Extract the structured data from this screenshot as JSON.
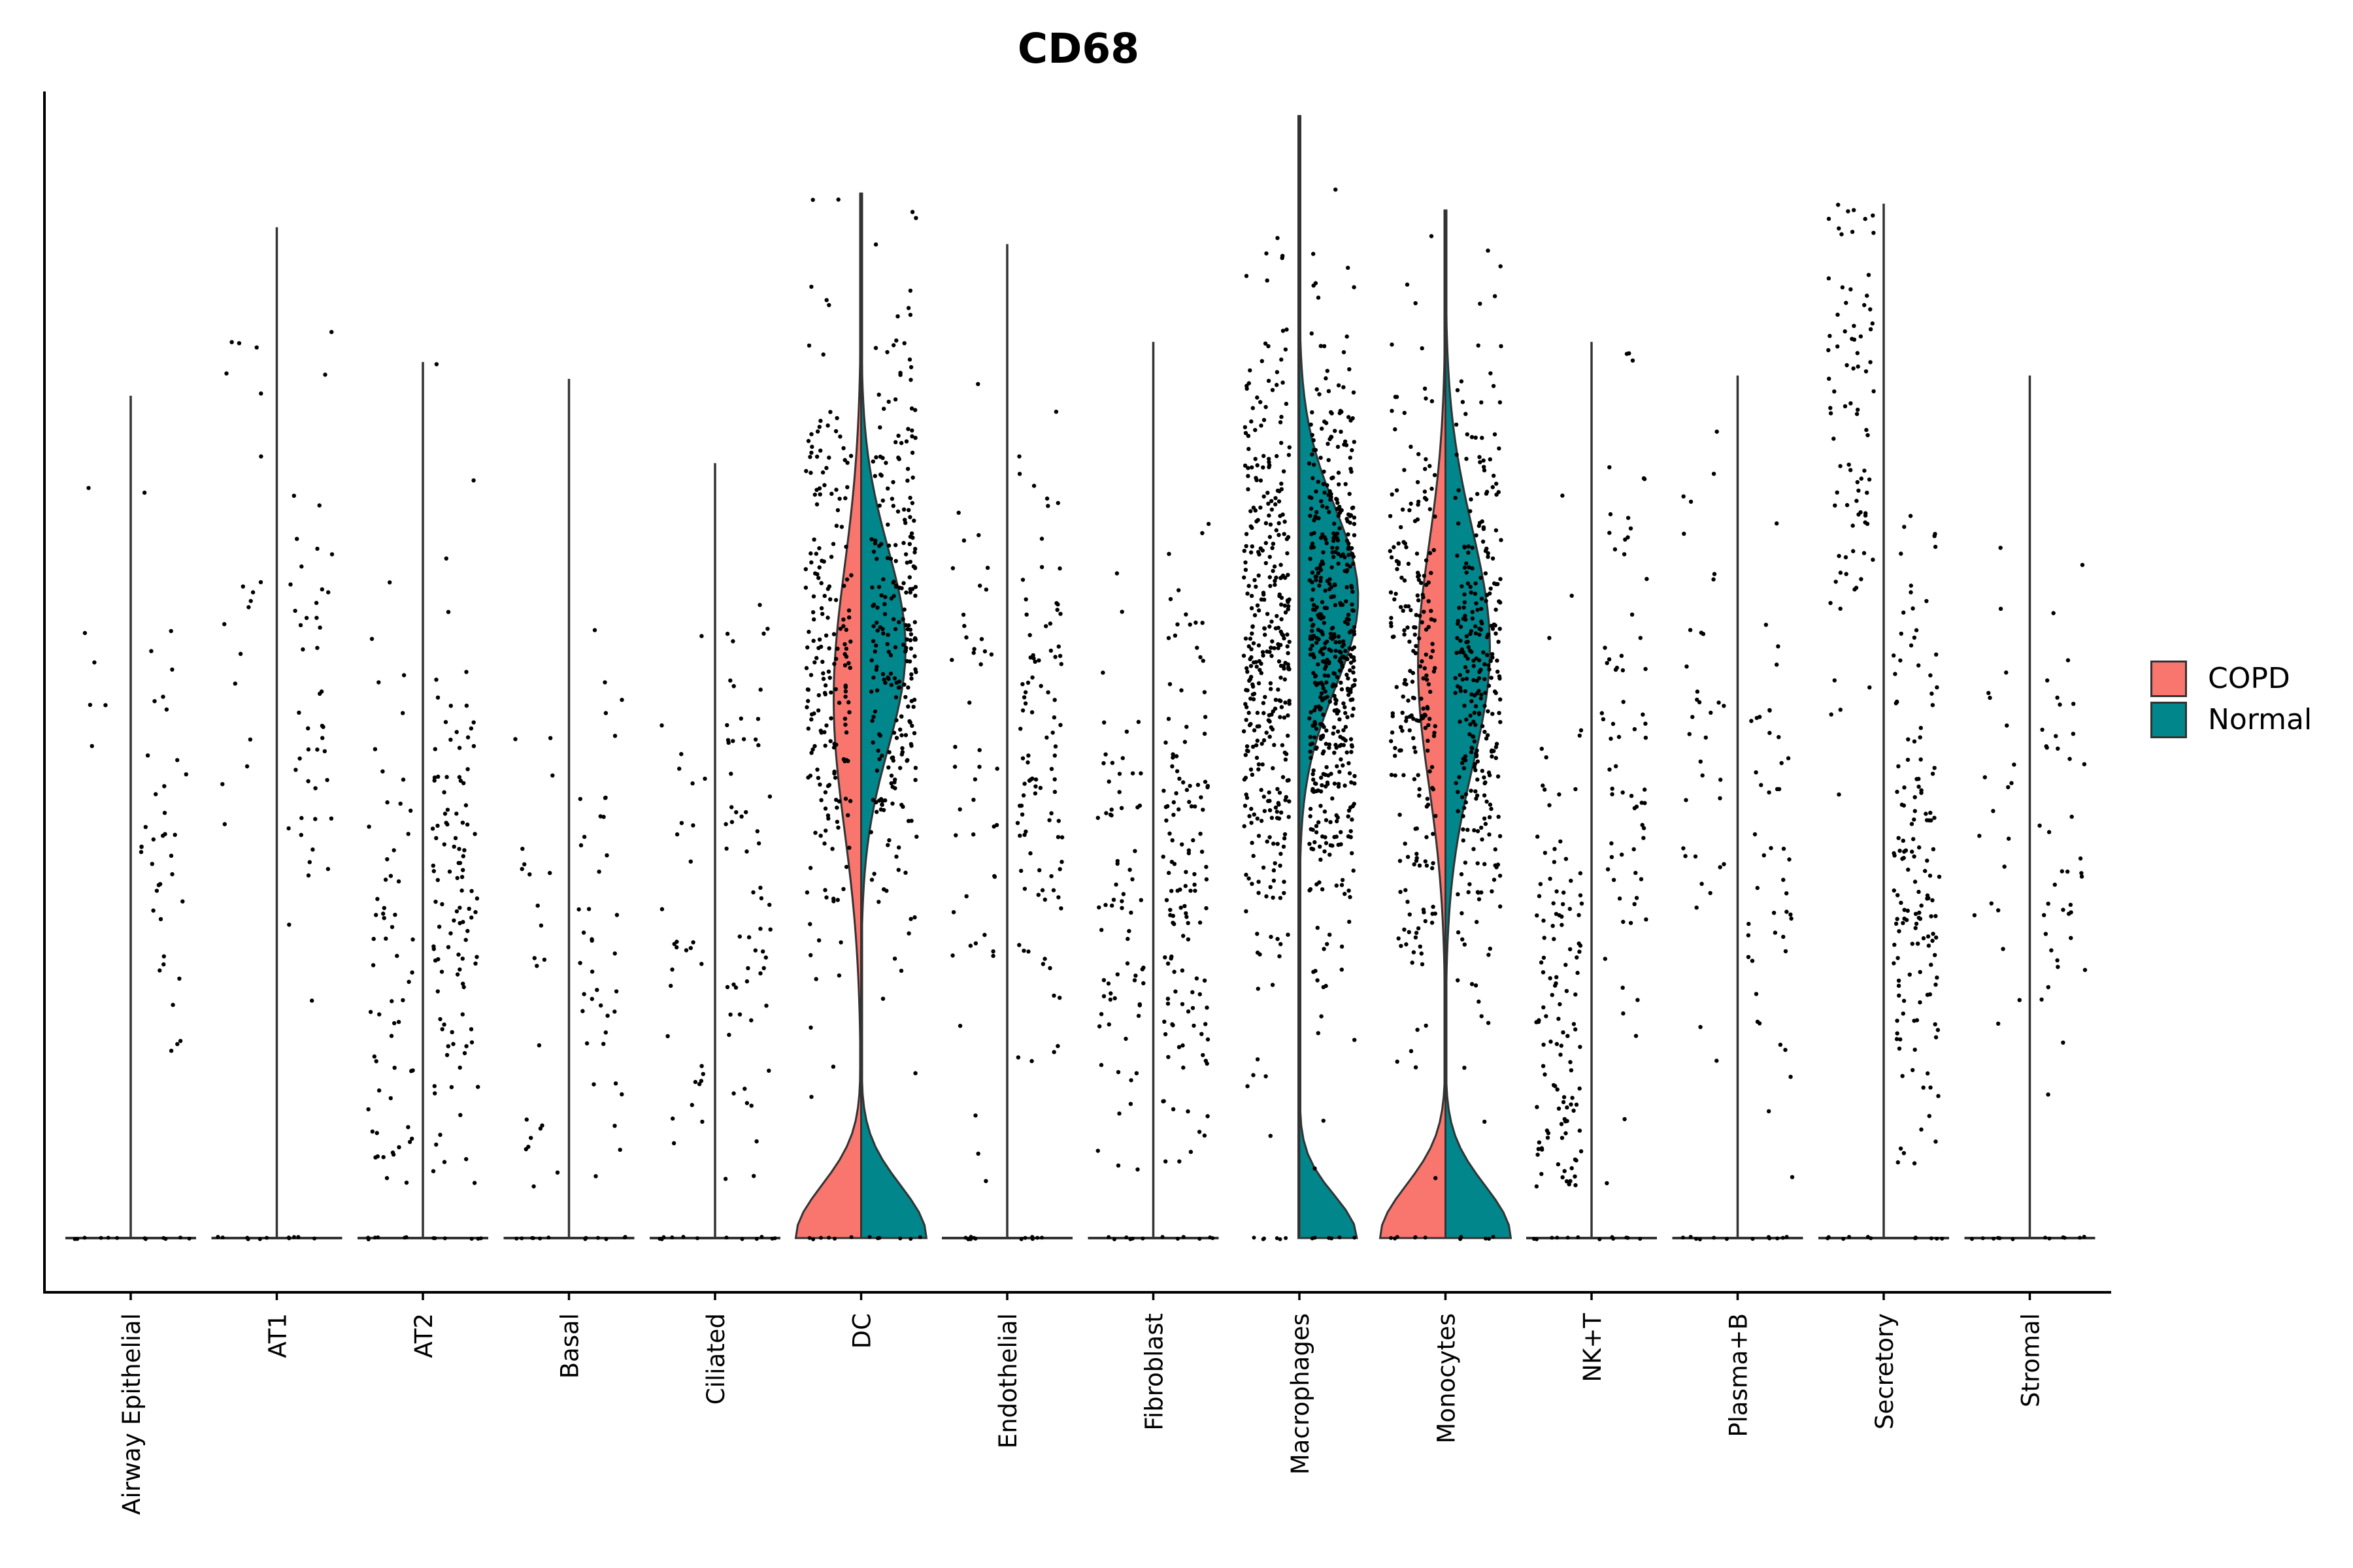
{
  "chart_data": {
    "type": "violin",
    "title": "CD68",
    "xlabel": "",
    "ylabel": "",
    "ylim": [
      0,
      3.5
    ],
    "categories": [
      "Airway Epithelial",
      "AT1",
      "AT2",
      "Basal",
      "Ciliated",
      "DC",
      "Endothelial",
      "Fibroblast",
      "Macrophages",
      "Monocytes",
      "NK+T",
      "Plasma+B",
      "Secretory",
      "Stromal"
    ],
    "split_by": "condition",
    "legend_position": "right",
    "series": [
      {
        "name": "COPD",
        "color": "#F8766D",
        "max_expression": [
          2.5,
          3.0,
          2.6,
          2.55,
          2.3,
          3.1,
          2.95,
          2.66,
          3.33,
          3.05,
          2.66,
          2.56,
          3.07,
          2.56
        ],
        "median_of_expressing_cells": [
          1.6,
          2.0,
          0.8,
          0.7,
          0.8,
          1.7,
          1.5,
          0.9,
          1.8,
          1.7,
          0.6,
          1.5,
          2.4,
          1.3
        ]
      },
      {
        "name": "Normal",
        "color": "#00868B",
        "max_expression": [
          2.5,
          3.0,
          2.6,
          2.55,
          2.3,
          3.1,
          2.95,
          2.66,
          3.33,
          3.05,
          2.66,
          2.56,
          3.07,
          2.56
        ],
        "median_of_expressing_cells": [
          1.3,
          1.5,
          1.0,
          0.9,
          1.0,
          1.8,
          1.4,
          1.1,
          1.7,
          1.7,
          1.5,
          1.2,
          1.1,
          1.2
        ]
      }
    ]
  },
  "legend": {
    "items": [
      {
        "label": "COPD",
        "color": "#F8766D"
      },
      {
        "label": "Normal",
        "color": "#00868B"
      }
    ]
  }
}
